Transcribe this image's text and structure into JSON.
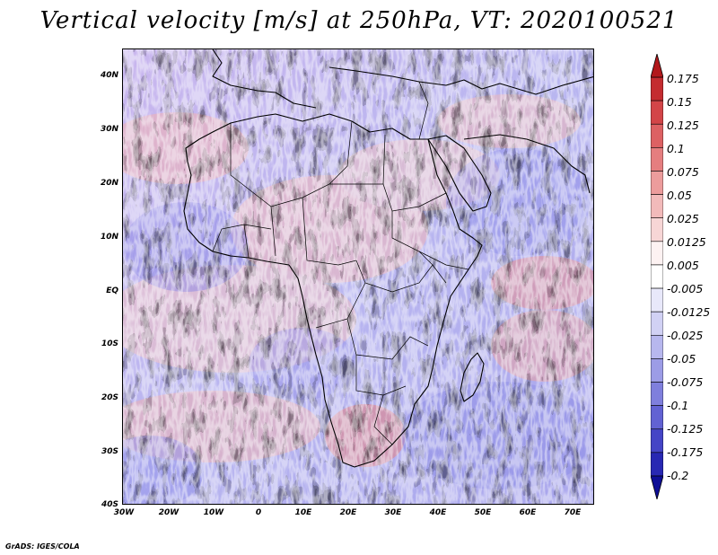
{
  "title": "Vertical velocity [m/s] at 250hPa, VT: 2020100521",
  "credit": "GrADS: IGES/COLA",
  "lat_labels": [
    "40N",
    "30N",
    "20N",
    "10N",
    "EQ",
    "10S",
    "20S",
    "30S",
    "40S"
  ],
  "lon_labels": [
    "30W",
    "20W",
    "10W",
    "0",
    "10E",
    "20E",
    "30E",
    "40E",
    "50E",
    "60E",
    "70E"
  ],
  "colorbar": {
    "labels": [
      "0.175",
      "0.15",
      "0.125",
      "0.1",
      "0.075",
      "0.05",
      "0.025",
      "0.0125",
      "0.005",
      "-0.005",
      "-0.0125",
      "-0.025",
      "-0.05",
      "-0.075",
      "-0.1",
      "-0.125",
      "-0.175",
      "-0.2"
    ],
    "colors": [
      "#b2181b",
      "#c42c30",
      "#d34548",
      "#dd6163",
      "#e57e7f",
      "#ec9c9c",
      "#f2baba",
      "#f7d6d6",
      "#fdf2f2",
      "#ffffff",
      "#e8e8fa",
      "#d1d1f4",
      "#b7b7ee",
      "#9c9ce6",
      "#7f7fdd",
      "#6262d3",
      "#4545c6",
      "#2828b3",
      "#0e0e96"
    ]
  }
}
